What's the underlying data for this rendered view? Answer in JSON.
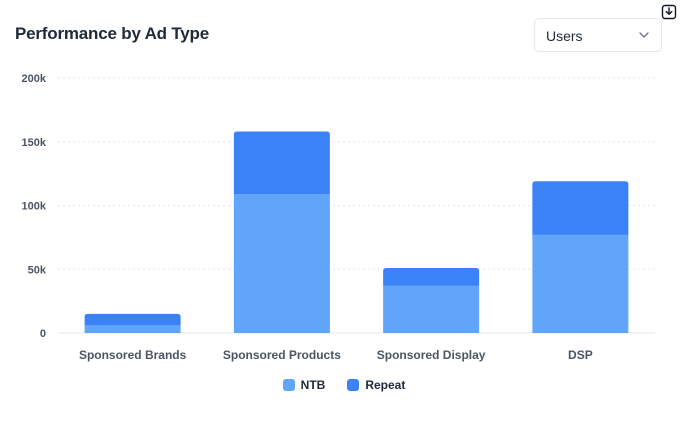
{
  "header": {
    "title": "Performance by Ad Type"
  },
  "metric_select": {
    "value": "Users",
    "icon": "chevron-down-icon"
  },
  "toolbar": {
    "download_icon": "download-icon"
  },
  "colors": {
    "ntb": "#60a5fa",
    "repeat": "#3b82f6",
    "grid": "#e5e7eb",
    "tick": "#4b5563"
  },
  "chart_data": {
    "type": "bar",
    "stacked": true,
    "categories": [
      "Sponsored Brands",
      "Sponsored Products",
      "Sponsored Display",
      "DSP"
    ],
    "series": [
      {
        "name": "NTB",
        "values": [
          6000,
          109000,
          37000,
          77000
        ]
      },
      {
        "name": "Repeat",
        "values": [
          9000,
          49000,
          14000,
          42000
        ]
      }
    ],
    "y_ticks": [
      "0",
      "50k",
      "100k",
      "150k",
      "200k"
    ],
    "ylim": [
      0,
      200000
    ],
    "grid": true,
    "legend": "bottom-center"
  }
}
